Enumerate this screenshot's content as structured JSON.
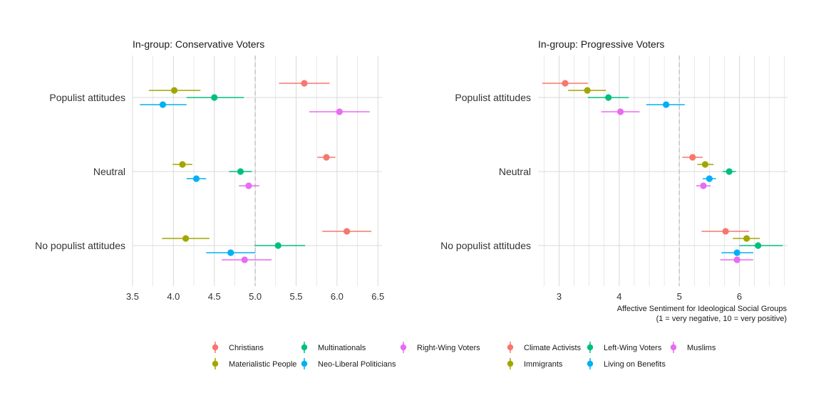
{
  "colors": {
    "red": "#F8766D",
    "olive": "#A3A500",
    "green": "#00BF7D",
    "blue": "#00B0F6",
    "magenta": "#E76BF3",
    "grid": "#d9d9d9",
    "refline": "#c8c8c8"
  },
  "caption": {
    "line1": "Affective Sentiment for Ideological Social Groups",
    "line2": "(1 = very negative, 10 = very positive)"
  },
  "chart_data": [
    {
      "type": "scatter",
      "title": "In-group: Conservative Voters",
      "xlabel": "",
      "ylabel": "",
      "xlim": [
        3.5,
        6.55
      ],
      "xticks": [
        3.5,
        4.0,
        4.5,
        5.0,
        5.5,
        6.0,
        6.5
      ],
      "xtick_labels": [
        "3.5",
        "4.0",
        "4.5",
        "5.0",
        "5.5",
        "6.0",
        "6.5"
      ],
      "reference_line": 5.0,
      "categories": [
        "Populist attitudes",
        "Neutral",
        "No populist attitudes"
      ],
      "series": [
        {
          "name": "Christians",
          "color": "#F8766D",
          "points": [
            {
              "category": "Populist attitudes",
              "estimate": 5.6,
              "low": 5.29,
              "high": 5.91
            },
            {
              "category": "Neutral",
              "estimate": 5.87,
              "low": 5.76,
              "high": 5.98
            },
            {
              "category": "No populist attitudes",
              "estimate": 6.12,
              "low": 5.82,
              "high": 6.42
            }
          ]
        },
        {
          "name": "Materialistic People",
          "color": "#A3A500",
          "points": [
            {
              "category": "Populist attitudes",
              "estimate": 4.01,
              "low": 3.7,
              "high": 4.33
            },
            {
              "category": "Neutral",
              "estimate": 4.11,
              "low": 3.99,
              "high": 4.23
            },
            {
              "category": "No populist attitudes",
              "estimate": 4.15,
              "low": 3.86,
              "high": 4.44
            }
          ]
        },
        {
          "name": "Multinationals",
          "color": "#00BF7D",
          "points": [
            {
              "category": "Populist attitudes",
              "estimate": 4.5,
              "low": 4.16,
              "high": 4.86
            },
            {
              "category": "Neutral",
              "estimate": 4.82,
              "low": 4.68,
              "high": 4.96
            },
            {
              "category": "No populist attitudes",
              "estimate": 5.28,
              "low": 4.99,
              "high": 5.61
            }
          ]
        },
        {
          "name": "Neo-Liberal Politicians",
          "color": "#00B0F6",
          "points": [
            {
              "category": "Populist attitudes",
              "estimate": 3.87,
              "low": 3.59,
              "high": 4.16
            },
            {
              "category": "Neutral",
              "estimate": 4.28,
              "low": 4.16,
              "high": 4.4
            },
            {
              "category": "No populist attitudes",
              "estimate": 4.7,
              "low": 4.4,
              "high": 5.0
            }
          ]
        },
        {
          "name": "Right-Wing Voters",
          "color": "#E76BF3",
          "points": [
            {
              "category": "Populist attitudes",
              "estimate": 6.03,
              "low": 5.66,
              "high": 6.4
            },
            {
              "category": "Neutral",
              "estimate": 4.92,
              "low": 4.8,
              "high": 5.05
            },
            {
              "category": "No populist attitudes",
              "estimate": 4.87,
              "low": 4.59,
              "high": 5.2
            }
          ]
        }
      ]
    },
    {
      "type": "scatter",
      "title": "In-group: Progressive Voters",
      "xlabel": "Affective Sentiment for Ideological Social Groups (1 = very negative, 10 = very positive)",
      "ylabel": "",
      "xlim": [
        2.65,
        6.8
      ],
      "xticks": [
        3,
        4,
        5,
        6
      ],
      "xtick_labels": [
        "3",
        "4",
        "5",
        "6"
      ],
      "reference_line": 5.0,
      "categories": [
        "Populist attitudes",
        "Neutral",
        "No populist attitudes"
      ],
      "series": [
        {
          "name": "Climate Activists",
          "color": "#F8766D",
          "points": [
            {
              "category": "Populist attitudes",
              "estimate": 3.1,
              "low": 2.72,
              "high": 3.48
            },
            {
              "category": "Neutral",
              "estimate": 5.22,
              "low": 5.05,
              "high": 5.39
            },
            {
              "category": "No populist attitudes",
              "estimate": 5.77,
              "low": 5.37,
              "high": 6.16
            }
          ]
        },
        {
          "name": "Immigrants",
          "color": "#A3A500",
          "points": [
            {
              "category": "Populist attitudes",
              "estimate": 3.47,
              "low": 3.15,
              "high": 3.78
            },
            {
              "category": "Neutral",
              "estimate": 5.43,
              "low": 5.3,
              "high": 5.57
            },
            {
              "category": "No populist attitudes",
              "estimate": 6.12,
              "low": 5.89,
              "high": 6.34
            }
          ]
        },
        {
          "name": "Left-Wing Voters",
          "color": "#00BF7D",
          "points": [
            {
              "category": "Populist attitudes",
              "estimate": 3.82,
              "low": 3.48,
              "high": 4.16
            },
            {
              "category": "Neutral",
              "estimate": 5.83,
              "low": 5.72,
              "high": 5.94
            },
            {
              "category": "No populist attitudes",
              "estimate": 6.31,
              "low": 6.0,
              "high": 6.72
            }
          ]
        },
        {
          "name": "Living on Benefits",
          "color": "#00B0F6",
          "points": [
            {
              "category": "Populist attitudes",
              "estimate": 4.78,
              "low": 4.45,
              "high": 5.09
            },
            {
              "category": "Neutral",
              "estimate": 5.5,
              "low": 5.39,
              "high": 5.61
            },
            {
              "category": "No populist attitudes",
              "estimate": 5.96,
              "low": 5.7,
              "high": 6.23
            }
          ]
        },
        {
          "name": "Muslims",
          "color": "#E76BF3",
          "points": [
            {
              "category": "Populist attitudes",
              "estimate": 4.02,
              "low": 3.7,
              "high": 4.34
            },
            {
              "category": "Neutral",
              "estimate": 5.4,
              "low": 5.28,
              "high": 5.52
            },
            {
              "category": "No populist attitudes",
              "estimate": 5.96,
              "low": 5.68,
              "high": 6.23
            }
          ]
        }
      ]
    }
  ]
}
